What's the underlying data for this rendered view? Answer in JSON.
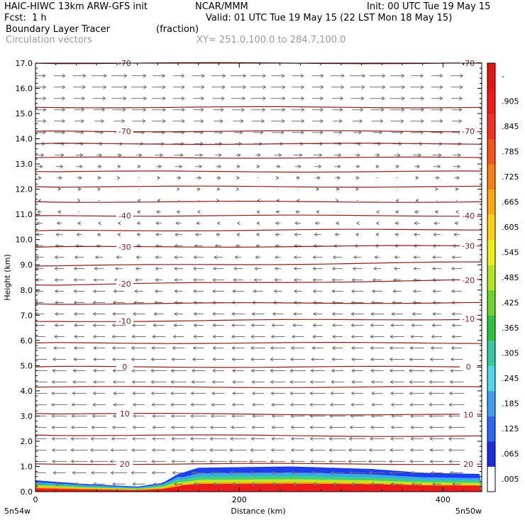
{
  "header": {
    "title_left": "HAIC-HIWC 13km ARW-GFS init",
    "org": "NCAR/MMM",
    "init": "Init: 00 UTC Tue 19 May 15",
    "fcst_label": "Fcst:",
    "fcst_value": "1 h",
    "valid": "Valid: 01 UTC Tue 19 May 15 (22 LST Mon 18 May 15)",
    "field_name": "Boundary Layer Tracer",
    "field_units": "(fraction)",
    "vector_name": "Circulation vectors",
    "xy_range": "XY= 251.0,100.0 to 284.7,100.0"
  },
  "colors": {
    "contour": "#8b1a1a",
    "vector": "#707070"
  },
  "chart_data": {
    "type": "cross-section",
    "xlabel": "Distance (km)",
    "ylabel": "Height (km)",
    "xlim": [
      0,
      438
    ],
    "ylim": [
      0,
      17
    ],
    "x_ticks": [
      0,
      200,
      400
    ],
    "x_tick_labels": [
      "0",
      "200",
      "400"
    ],
    "y_ticks": [
      0,
      1,
      2,
      3,
      4,
      5,
      6,
      7,
      8,
      9,
      10,
      11,
      12,
      13,
      14,
      15,
      16,
      17
    ],
    "y_tick_labels": [
      "0.0",
      "1.0",
      "2.0",
      "3.0",
      "4.0",
      "5.0",
      "6.0",
      "7.0",
      "8.0",
      "9.0",
      "10.0",
      "11.0",
      "12.0",
      "13.0",
      "14.0",
      "15.0",
      "16.0",
      "17.0"
    ],
    "endpoints": [
      "5n54w",
      "5n50w"
    ],
    "colorbar": {
      "labels": [
        ".005",
        ".065",
        ".125",
        ".185",
        ".245",
        ".305",
        ".365",
        ".425",
        ".485",
        ".545",
        ".605",
        ".665",
        ".725",
        ".785",
        ".845",
        ".905",
        "-"
      ],
      "colors": [
        "#ffffff",
        "#1e2ce0",
        "#2e66f5",
        "#3fa0f0",
        "#4fd6e8",
        "#37c9a0",
        "#2ec23e",
        "#6cd42a",
        "#b4e41c",
        "#f0ee10",
        "#fcd20c",
        "#fca80c",
        "#fc8010",
        "#f8541a",
        "#f43020",
        "#ee1a1a",
        "#e51414"
      ]
    },
    "temperature_contours": [
      {
        "label": "20",
        "heights": [
          1.1,
          1.1
        ]
      },
      {
        "label": "",
        "heights": [
          2.25,
          2.2
        ]
      },
      {
        "label": "10",
        "heights": [
          3.1,
          3.05
        ]
      },
      {
        "label": "",
        "heights": [
          4.15,
          4.15
        ]
      },
      {
        "label": "0",
        "heights": [
          4.95,
          4.95
        ]
      },
      {
        "label": "",
        "heights": [
          5.9,
          5.9
        ]
      },
      {
        "label": "-10",
        "heights": [
          6.75,
          6.85
        ]
      },
      {
        "label": "",
        "heights": [
          7.45,
          7.5
        ]
      },
      {
        "label": "-20",
        "heights": [
          8.2,
          8.4
        ]
      },
      {
        "label": "",
        "heights": [
          8.95,
          9.1
        ]
      },
      {
        "label": "-30",
        "heights": [
          9.7,
          9.75
        ]
      },
      {
        "label": "",
        "heights": [
          10.35,
          10.4
        ]
      },
      {
        "label": "-40",
        "heights": [
          10.95,
          10.95
        ]
      },
      {
        "label": "",
        "heights": [
          11.5,
          11.5
        ]
      },
      {
        "label": "",
        "heights": [
          12.1,
          12.1
        ]
      },
      {
        "label": "",
        "heights": [
          12.7,
          12.7
        ]
      },
      {
        "label": "",
        "heights": [
          13.25,
          13.25
        ]
      },
      {
        "label": "",
        "heights": [
          13.8,
          13.8
        ]
      },
      {
        "label": "-70",
        "heights": [
          14.3,
          14.3
        ]
      },
      {
        "label": "",
        "heights": [
          15.25,
          15.25
        ]
      },
      {
        "label": "-70",
        "heights": [
          17.0,
          17.0
        ]
      }
    ],
    "tracer_top_km": [
      {
        "x": 0,
        "top": 0.45
      },
      {
        "x": 50,
        "top": 0.3
      },
      {
        "x": 100,
        "top": 0.2
      },
      {
        "x": 125,
        "top": 0.35
      },
      {
        "x": 140,
        "top": 0.7
      },
      {
        "x": 160,
        "top": 0.95
      },
      {
        "x": 250,
        "top": 1.0
      },
      {
        "x": 330,
        "top": 0.9
      },
      {
        "x": 380,
        "top": 0.75
      },
      {
        "x": 438,
        "top": 0.7
      }
    ],
    "wind_profile": [
      {
        "z": 0.3,
        "u": -0.4
      },
      {
        "z": 1.0,
        "u": -0.6
      },
      {
        "z": 2.0,
        "u": -0.55
      },
      {
        "z": 3.0,
        "u": -0.5
      },
      {
        "z": 4.0,
        "u": -0.5
      },
      {
        "z": 5.0,
        "u": -0.5
      },
      {
        "z": 6.0,
        "u": -0.45
      },
      {
        "z": 7.0,
        "u": -0.4
      },
      {
        "z": 8.0,
        "u": -0.35
      },
      {
        "z": 9.0,
        "u": -0.3
      },
      {
        "z": 10.0,
        "u": -0.2
      },
      {
        "z": 11.0,
        "u": -0.1
      },
      {
        "z": 12.0,
        "u": 0.05
      },
      {
        "z": 13.0,
        "u": 0.2
      },
      {
        "z": 14.0,
        "u": 0.35
      },
      {
        "z": 15.0,
        "u": 0.45
      },
      {
        "z": 16.0,
        "u": 0.5
      },
      {
        "z": 16.8,
        "u": 0.5
      }
    ]
  }
}
